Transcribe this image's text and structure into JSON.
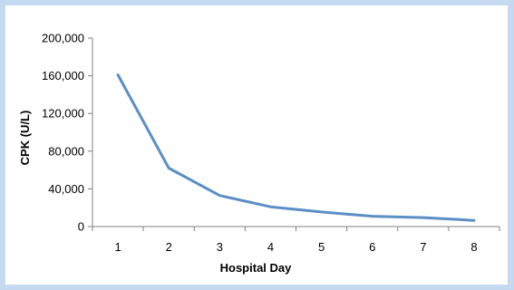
{
  "chart_data": {
    "type": "line",
    "title": "",
    "xlabel": "Hospital Day",
    "ylabel": "CPK (U/L)",
    "x": [
      1,
      2,
      3,
      4,
      5,
      6,
      7,
      8
    ],
    "series": [
      {
        "values": [
          161000,
          62000,
          33000,
          21000,
          15500,
          11000,
          9500,
          6500
        ]
      }
    ],
    "xticks": [
      "1",
      "2",
      "3",
      "4",
      "5",
      "6",
      "7",
      "8"
    ],
    "yticks": [
      "0",
      "40,000",
      "80,000",
      "120,000",
      "160,000",
      "200,000"
    ],
    "ylim": [
      0,
      200000
    ],
    "grid": false,
    "legend": "none",
    "colors": {
      "line": "#5b8ec4",
      "background_border": "#c5daf0"
    }
  }
}
